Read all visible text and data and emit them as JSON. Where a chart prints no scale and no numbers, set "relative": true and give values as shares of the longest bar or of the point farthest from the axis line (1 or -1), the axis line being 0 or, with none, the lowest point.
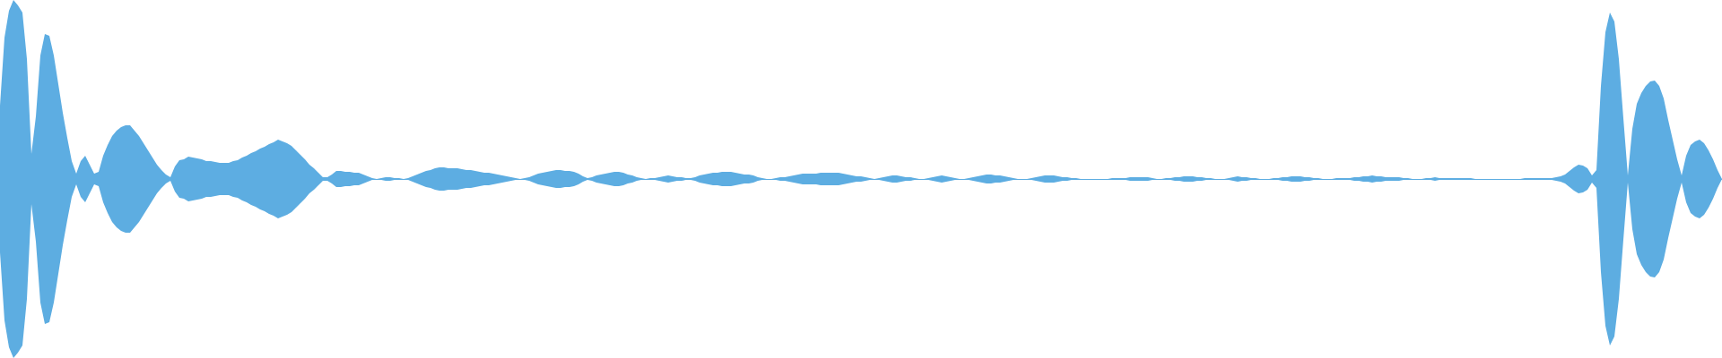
{
  "chart_data": {
    "type": "area",
    "relative": true,
    "categories": [
      null,
      null,
      null,
      null,
      null,
      null,
      null,
      null,
      null,
      null,
      null,
      null,
      null,
      null,
      null,
      null,
      null,
      null,
      null,
      null,
      null,
      null,
      null,
      null,
      null,
      null,
      null,
      null,
      null,
      null,
      null,
      null,
      null,
      null,
      null,
      null,
      null,
      null,
      null,
      null,
      null,
      null,
      null,
      null,
      null,
      null,
      null,
      null,
      null,
      null,
      null,
      null,
      null,
      null,
      null,
      null,
      null,
      null,
      null,
      null,
      null,
      null,
      null,
      null,
      null,
      null,
      null,
      null,
      null,
      null,
      null,
      null,
      null,
      null,
      null,
      null,
      null,
      null,
      null,
      null,
      null,
      null,
      null,
      null,
      null,
      null,
      null,
      null,
      null,
      null,
      null,
      null,
      null,
      null,
      null,
      null,
      null,
      null,
      null,
      null,
      null,
      null,
      null,
      null,
      null,
      null,
      null,
      null,
      null,
      null,
      null,
      null,
      null,
      null,
      null,
      null,
      null,
      null,
      null,
      null,
      null,
      null,
      null,
      null,
      null,
      null,
      null,
      null,
      null,
      null,
      null,
      null,
      null,
      null,
      null,
      null,
      null,
      null,
      null,
      null,
      null,
      null,
      null,
      null,
      null,
      null,
      null,
      null,
      null,
      null,
      null,
      null,
      null,
      null,
      null,
      null,
      null,
      null,
      null,
      null,
      null,
      null,
      null,
      null,
      null,
      null,
      null,
      null,
      null,
      null,
      null,
      null,
      null,
      null,
      null,
      null,
      null,
      null,
      null,
      null,
      null,
      null,
      null,
      null,
      null,
      null,
      null,
      null,
      null,
      null,
      null,
      null,
      null,
      null,
      null,
      null,
      null,
      null,
      null,
      null,
      null,
      null,
      null,
      null,
      null,
      null,
      null,
      null,
      null,
      null,
      null,
      null,
      null,
      null,
      null,
      null,
      null,
      null,
      null,
      null,
      null,
      null,
      null,
      null,
      null,
      null,
      null,
      null,
      null,
      null,
      null,
      null,
      null,
      null,
      null,
      null,
      null,
      null,
      null,
      null,
      null,
      null,
      null,
      null,
      null,
      null,
      null,
      null,
      null,
      null,
      null,
      null,
      null,
      null,
      null,
      null,
      null,
      null,
      null,
      null,
      null,
      null,
      null,
      null,
      null,
      null,
      null,
      null,
      null,
      null,
      null,
      null,
      null,
      null,
      null,
      null,
      null,
      null,
      null,
      null,
      null,
      null,
      null,
      null,
      null,
      null,
      null,
      null,
      null,
      null,
      null,
      null,
      null,
      null,
      null,
      null,
      null,
      null,
      null,
      null,
      null,
      null,
      null,
      null,
      null,
      null,
      null,
      null,
      null,
      null,
      null,
      null,
      null,
      null,
      null,
      null,
      null,
      null,
      null,
      null,
      null,
      null,
      null,
      null,
      null,
      null,
      null,
      null,
      null,
      null,
      null,
      null,
      null,
      null,
      null,
      null,
      null,
      null,
      null,
      null,
      null,
      null,
      null,
      null,
      null,
      null,
      null,
      null,
      null,
      null,
      null,
      null,
      null,
      null,
      null,
      null,
      null,
      null,
      null,
      null,
      null,
      null,
      null,
      null,
      null,
      null,
      null,
      null,
      null,
      null,
      null,
      null,
      null,
      null,
      null,
      null,
      null,
      null,
      null,
      null,
      null,
      null,
      null,
      null,
      null
    ],
    "series": [
      {
        "color": "#5dade2",
        "values": [
          0.41,
          0.79,
          0.94,
          1,
          0.97,
          0.93,
          0.67,
          0.14,
          0.35,
          0.69,
          0.81,
          0.8,
          0.69,
          0.53,
          0.37,
          0.23,
          0.1,
          0.03,
          0.1,
          0.13,
          0.08,
          0.03,
          0.04,
          0.13,
          0.19,
          0.24,
          0.27,
          0.29,
          0.3,
          0.3,
          0.27,
          0.24,
          0.2,
          0.16,
          0.12,
          0.08,
          0.05,
          0.025,
          0.01,
          0.07,
          0.105,
          0.11,
          0.125,
          0.12,
          0.115,
          0.11,
          0.1,
          0.1,
          0.095,
          0.09,
          0.09,
          0.09,
          0.1,
          0.105,
          0.12,
          0.13,
          0.145,
          0.155,
          0.17,
          0.18,
          0.195,
          0.205,
          0.22,
          0.21,
          0.2,
          0.185,
          0.16,
          0.135,
          0.11,
          0.08,
          0.06,
          0.035,
          0.01,
          0.01,
          0.025,
          0.045,
          0.045,
          0.04,
          0.04,
          0.035,
          0.035,
          0.025,
          0.015,
          0.005,
          0,
          0.005,
          0.01,
          0.01,
          0.005,
          0.005,
          0,
          0.005,
          0.015,
          0.025,
          0.035,
          0.045,
          0.05,
          0.06,
          0.065,
          0.065,
          0.06,
          0.06,
          0.06,
          0.055,
          0.05,
          0.05,
          0.045,
          0.04,
          0.035,
          0.035,
          0.03,
          0.025,
          0.02,
          0.015,
          0.01,
          0.005,
          0,
          0.005,
          0.01,
          0.02,
          0.03,
          0.035,
          0.04,
          0.045,
          0.05,
          0.05,
          0.045,
          0.045,
          0.04,
          0.03,
          0.015,
          0.005,
          0.01,
          0.02,
          0.025,
          0.03,
          0.035,
          0.04,
          0.04,
          0.035,
          0.025,
          0.02,
          0.01,
          0.005,
          0,
          0.005,
          0.005,
          0.01,
          0.015,
          0.02,
          0.015,
          0.01,
          0.01,
          0.005,
          0.005,
          0.01,
          0.02,
          0.025,
          0.03,
          0.035,
          0.035,
          0.04,
          0.04,
          0.04,
          0.035,
          0.03,
          0.025,
          0.025,
          0.02,
          0.01,
          0.005,
          0,
          0,
          0.005,
          0.01,
          0.01,
          0.015,
          0.02,
          0.025,
          0.03,
          0.03,
          0.03,
          0.03,
          0.035,
          0.035,
          0.035,
          0.035,
          0.035,
          0.03,
          0.025,
          0.02,
          0.015,
          0.015,
          0.01,
          0.005,
          0,
          0.005,
          0.01,
          0.015,
          0.02,
          0.02,
          0.015,
          0.01,
          0.01,
          0.005,
          0,
          0,
          0.005,
          0.01,
          0.015,
          0.02,
          0.015,
          0.01,
          0.005,
          0,
          0,
          0.005,
          0.01,
          0.015,
          0.02,
          0.025,
          0.025,
          0.02,
          0.02,
          0.015,
          0.01,
          0.005,
          0,
          0,
          0,
          0.005,
          0.01,
          0.015,
          0.02,
          0.02,
          0.02,
          0.015,
          0.01,
          0.01,
          0.005,
          0.005,
          0,
          0,
          0,
          0,
          0,
          0,
          0,
          0.005,
          0.005,
          0.005,
          0.005,
          0.01,
          0.01,
          0.01,
          0.01,
          0.01,
          0.005,
          0,
          0,
          0.005,
          0.005,
          0.01,
          0.01,
          0.015,
          0.015,
          0.015,
          0.01,
          0.01,
          0.005,
          0.005,
          0,
          0,
          0,
          0.005,
          0.01,
          0.015,
          0.01,
          0.01,
          0.005,
          0.005,
          0,
          0,
          0,
          0.005,
          0.005,
          0.01,
          0.01,
          0.015,
          0.015,
          0.015,
          0.01,
          0.01,
          0.005,
          0.005,
          0,
          0,
          0,
          0.005,
          0.005,
          0.005,
          0.005,
          0.01,
          0.01,
          0.015,
          0.015,
          0.02,
          0.015,
          0.015,
          0.01,
          0.01,
          0.01,
          0.01,
          0.005,
          0.005,
          0,
          0,
          0,
          0.005,
          0.005,
          0.01,
          0.005,
          0.005,
          0.005,
          0.005,
          0.005,
          0.005,
          0.005,
          0.005,
          0,
          0,
          0,
          0,
          0,
          0,
          0,
          0,
          0,
          0,
          0,
          0.005,
          0.005,
          0.005,
          0.005,
          0.005,
          0.005,
          0.005,
          0.01,
          0.015,
          0.025,
          0.045,
          0.065,
          0.08,
          0.075,
          0.06,
          0.02,
          0.05,
          0.52,
          0.82,
          0.93,
          0.88,
          0.67,
          0.34,
          0.02,
          0.28,
          0.42,
          0.48,
          0.52,
          0.545,
          0.55,
          0.52,
          0.45,
          0.33,
          0.22,
          0.11,
          0.02,
          0.13,
          0.19,
          0.21,
          0.22,
          0.2,
          0.16,
          0.11,
          0.05,
          0
        ]
      },
      {
        "color": "#5dade1",
        "values": [
          -0.41,
          -0.79,
          -0.94,
          -1,
          -0.97,
          -0.93,
          -0.67,
          -0.14,
          -0.35,
          -0.69,
          -0.81,
          -0.8,
          -0.69,
          -0.53,
          -0.37,
          -0.23,
          -0.1,
          -0.03,
          -0.1,
          -0.13,
          -0.08,
          -0.03,
          -0.04,
          -0.13,
          -0.19,
          -0.24,
          -0.27,
          -0.29,
          -0.3,
          -0.3,
          -0.27,
          -0.24,
          -0.2,
          -0.16,
          -0.12,
          -0.08,
          -0.05,
          -0.025,
          -0.01,
          -0.07,
          -0.105,
          -0.11,
          -0.125,
          -0.12,
          -0.115,
          -0.11,
          -0.1,
          -0.1,
          -0.095,
          -0.09,
          -0.09,
          -0.09,
          -0.1,
          -0.105,
          -0.12,
          -0.13,
          -0.145,
          -0.155,
          -0.17,
          -0.18,
          -0.195,
          -0.205,
          -0.22,
          -0.21,
          -0.2,
          -0.185,
          -0.16,
          -0.135,
          -0.11,
          -0.08,
          -0.06,
          -0.035,
          -0.01,
          -0.01,
          -0.025,
          -0.045,
          -0.045,
          -0.04,
          -0.04,
          -0.035,
          -0.035,
          -0.025,
          -0.015,
          -0.005,
          0,
          -0.005,
          -0.01,
          -0.01,
          -0.005,
          -0.005,
          0,
          -0.005,
          -0.015,
          -0.025,
          -0.035,
          -0.045,
          -0.05,
          -0.06,
          -0.065,
          -0.065,
          -0.06,
          -0.06,
          -0.06,
          -0.055,
          -0.05,
          -0.05,
          -0.045,
          -0.04,
          -0.035,
          -0.035,
          -0.03,
          -0.025,
          -0.02,
          -0.015,
          -0.01,
          -0.005,
          0,
          -0.005,
          -0.01,
          -0.02,
          -0.03,
          -0.035,
          -0.04,
          -0.045,
          -0.05,
          -0.05,
          -0.045,
          -0.045,
          -0.04,
          -0.03,
          -0.015,
          -0.005,
          -0.01,
          -0.02,
          -0.025,
          -0.03,
          -0.035,
          -0.04,
          -0.04,
          -0.035,
          -0.025,
          -0.02,
          -0.01,
          -0.005,
          0,
          -0.005,
          -0.005,
          -0.01,
          -0.015,
          -0.02,
          -0.015,
          -0.01,
          -0.01,
          -0.005,
          -0.005,
          -0.01,
          -0.02,
          -0.025,
          -0.03,
          -0.035,
          -0.035,
          -0.04,
          -0.04,
          -0.04,
          -0.035,
          -0.03,
          -0.025,
          -0.025,
          -0.02,
          -0.01,
          -0.005,
          0,
          0,
          -0.005,
          -0.01,
          -0.01,
          -0.015,
          -0.02,
          -0.025,
          -0.03,
          -0.03,
          -0.03,
          -0.03,
          -0.035,
          -0.035,
          -0.035,
          -0.035,
          -0.035,
          -0.03,
          -0.025,
          -0.02,
          -0.015,
          -0.015,
          -0.01,
          -0.005,
          0,
          -0.005,
          -0.01,
          -0.015,
          -0.02,
          -0.02,
          -0.015,
          -0.01,
          -0.01,
          -0.005,
          0,
          0,
          -0.005,
          -0.01,
          -0.015,
          -0.02,
          -0.015,
          -0.01,
          -0.005,
          0,
          0,
          -0.005,
          -0.01,
          -0.015,
          -0.02,
          -0.025,
          -0.025,
          -0.02,
          -0.02,
          -0.015,
          -0.01,
          -0.005,
          0,
          0,
          0,
          -0.005,
          -0.01,
          -0.015,
          -0.02,
          -0.02,
          -0.02,
          -0.015,
          -0.01,
          -0.01,
          -0.005,
          -0.005,
          0,
          0,
          0,
          0,
          0,
          0,
          0,
          -0.005,
          -0.005,
          -0.005,
          -0.005,
          -0.01,
          -0.01,
          -0.01,
          -0.01,
          -0.01,
          -0.005,
          0,
          0,
          -0.005,
          -0.005,
          -0.01,
          -0.01,
          -0.015,
          -0.015,
          -0.015,
          -0.01,
          -0.01,
          -0.005,
          -0.005,
          0,
          0,
          0,
          -0.005,
          -0.01,
          -0.015,
          -0.01,
          -0.01,
          -0.005,
          -0.005,
          0,
          0,
          0,
          -0.005,
          -0.005,
          -0.01,
          -0.01,
          -0.015,
          -0.015,
          -0.015,
          -0.01,
          -0.01,
          -0.005,
          -0.005,
          0,
          0,
          0,
          -0.005,
          -0.005,
          -0.005,
          -0.005,
          -0.01,
          -0.01,
          -0.015,
          -0.015,
          -0.02,
          -0.015,
          -0.015,
          -0.01,
          -0.01,
          -0.01,
          -0.01,
          -0.005,
          -0.005,
          0,
          0,
          0,
          -0.005,
          -0.005,
          -0.01,
          -0.005,
          -0.005,
          -0.005,
          -0.005,
          -0.005,
          -0.005,
          -0.005,
          -0.005,
          0,
          0,
          0,
          0,
          0,
          0,
          0,
          0,
          0,
          0,
          0,
          -0.005,
          -0.005,
          -0.005,
          -0.005,
          -0.005,
          -0.005,
          -0.005,
          -0.01,
          -0.015,
          -0.025,
          -0.045,
          -0.065,
          -0.08,
          -0.075,
          -0.06,
          -0.02,
          -0.05,
          -0.52,
          -0.82,
          -0.93,
          -0.88,
          -0.67,
          -0.34,
          -0.02,
          -0.28,
          -0.42,
          -0.48,
          -0.52,
          -0.545,
          -0.55,
          -0.52,
          -0.45,
          -0.33,
          -0.22,
          -0.11,
          -0.02,
          -0.13,
          -0.19,
          -0.21,
          -0.22,
          -0.2,
          -0.16,
          -0.11,
          -0.05,
          0
        ]
      }
    ],
    "ref_lines": [
      {
        "axis": "y",
        "value": 0,
        "color": "#5dade2"
      }
    ]
  }
}
